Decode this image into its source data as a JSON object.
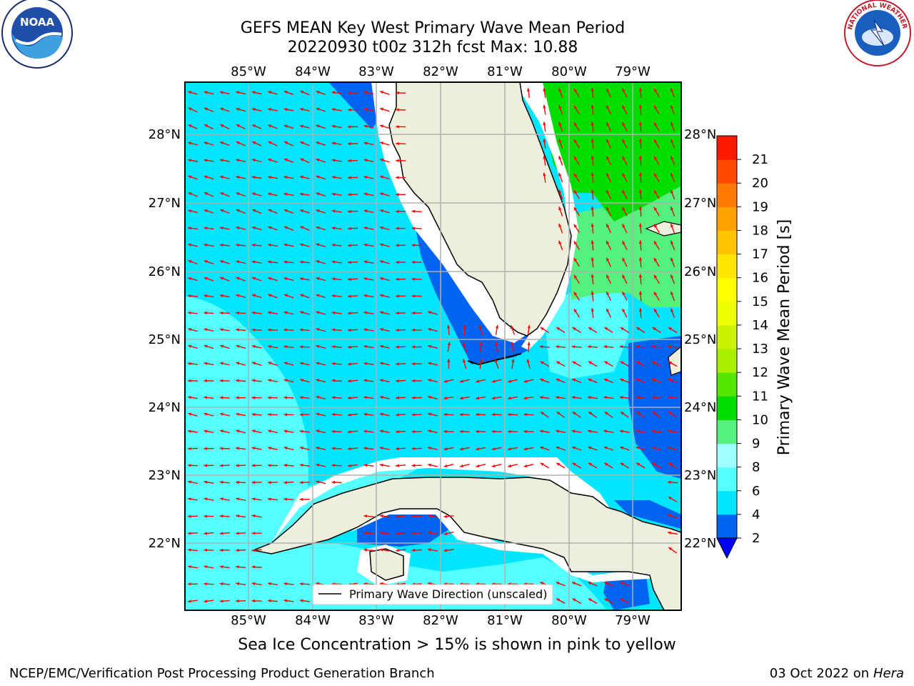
{
  "title_line1": "GEFS MEAN Key West Primary Wave Mean Period",
  "title_line2": "20220930 t00z 312h fcst   Max: 10.88",
  "logos": {
    "left": "NOAA",
    "right": "NATIONAL WEATHER SERVICE"
  },
  "lon_labels": [
    "85°W",
    "84°W",
    "83°W",
    "82°W",
    "81°W",
    "80°W",
    "79°W"
  ],
  "lat_labels": [
    "28°N",
    "27°N",
    "26°N",
    "25°N",
    "24°N",
    "23°N",
    "22°N"
  ],
  "colorbar": {
    "label": "Primary Wave Mean Period [s]",
    "ticks": [
      "2",
      "4",
      "6",
      "8",
      "9",
      "10",
      "11",
      "12",
      "13",
      "14",
      "15",
      "16",
      "17",
      "18",
      "19",
      "20",
      "21"
    ],
    "colors": [
      "#0064f0",
      "#00e6ff",
      "#55ffff",
      "#a0ffff",
      "#55f080",
      "#00dd00",
      "#55e600",
      "#aaee00",
      "#ccf200",
      "#eeff00",
      "#ffff00",
      "#ffe600",
      "#ffc400",
      "#ffa200",
      "#ff7a00",
      "#ff4a00",
      "#ff1800"
    ],
    "extend_color": "#0000ff"
  },
  "legend_text": "Primary Wave Direction (unscaled)",
  "sea_ice_note": "Sea Ice Concentration > 15% is shown in pink to yellow",
  "footer_left": "NCEP/EMC/Verification Post Processing Product Generation Branch",
  "footer_date": "03 Oct 2022 on ",
  "footer_host": "Hera",
  "colors": {
    "land": "#eeeedc",
    "arrow": "#ff0000",
    "grid": "#b0b0b0"
  }
}
